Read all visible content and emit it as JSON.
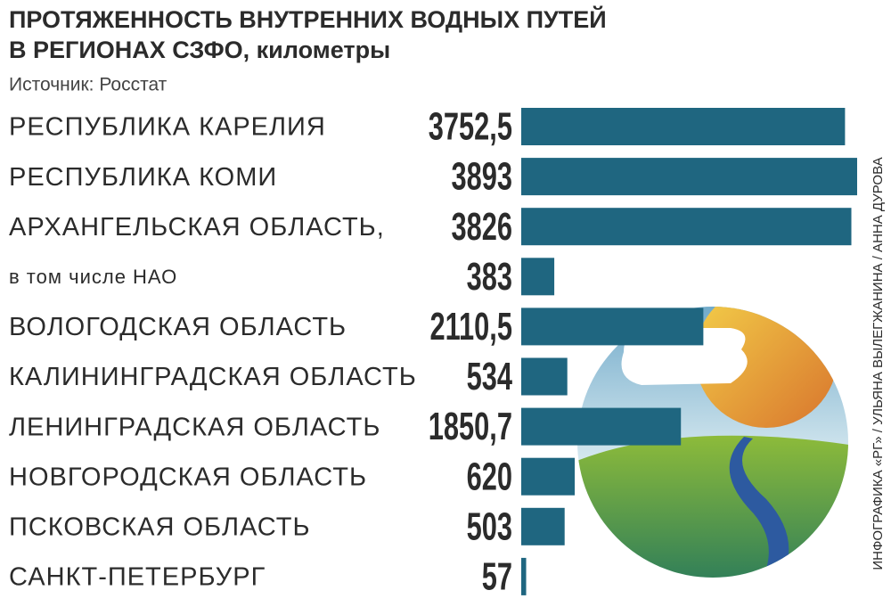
{
  "chart_data": {
    "type": "bar",
    "orientation": "horizontal",
    "title": [
      "ПРОТЯЖЕННОСТЬ ВНУТРЕННИХ ВОДНЫХ ПУТЕЙ",
      "В РЕГИОНАХ СЗФО, километры"
    ],
    "source": "Источник: Росстат",
    "credit": "ИНФОГРАФИКА «РГ» / УЛЬЯНА ВЫЛЕГЖАНИНА / АННА ДУРОВА",
    "categories": [
      "РЕСПУБЛИКА КАРЕЛИЯ",
      "РЕСПУБЛИКА КОМИ",
      "АРХАНГЕЛЬСКАЯ ОБЛАСТЬ,",
      "в том числе НАО",
      "ВОЛОГОДСКАЯ ОБЛАСТЬ",
      "КАЛИНИНГРАДСКАЯ ОБЛАСТЬ",
      "ЛЕНИНГРАДСКАЯ ОБЛАСТЬ",
      "НОВГОРОДСКАЯ ОБЛАСТЬ",
      "ПСКОВСКАЯ ОБЛАСТЬ",
      "САНКТ-ПЕТЕРБУРГ"
    ],
    "values": [
      3752.5,
      3893,
      3826,
      383,
      2110.5,
      534,
      1850.7,
      620,
      503,
      57
    ],
    "value_labels": [
      "3752,5",
      "3893",
      "3826",
      "383",
      "2110,5",
      "534",
      "1850,7",
      "620",
      "503",
      "57"
    ],
    "color": "#1f6680"
  }
}
